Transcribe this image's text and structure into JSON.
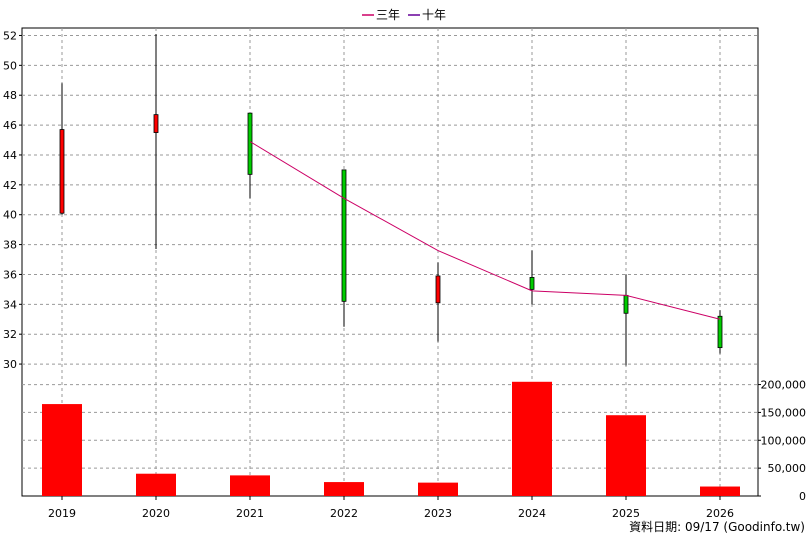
{
  "legend": {
    "three_year": "三年",
    "ten_year": "十年",
    "three_year_color": "#cc0066",
    "ten_year_color": "#660099"
  },
  "footer": "資料日期: 09/17  (Goodinfo.tw)",
  "chart_data": {
    "type": "candlestick",
    "categories": [
      "2019",
      "2020",
      "2021",
      "2022",
      "2023",
      "2024",
      "2025",
      "2026"
    ],
    "price_axis": {
      "ylim": [
        29,
        52.5
      ],
      "ticks": [
        "30",
        "32",
        "34",
        "36",
        "38",
        "40",
        "42",
        "44",
        "46",
        "48",
        "50",
        "52"
      ]
    },
    "volume_axis": {
      "ylim": [
        0,
        210000
      ],
      "ticks": [
        "0",
        "50,000",
        "100,000",
        "150,000",
        "200,000"
      ]
    },
    "candles": [
      {
        "year": "2019",
        "open": 40.1,
        "close": 45.7,
        "high": 48.8,
        "low": 40.0
      },
      {
        "year": "2020",
        "open": 45.5,
        "close": 46.7,
        "high": 52.1,
        "low": 37.7
      },
      {
        "year": "2021",
        "open": 46.8,
        "close": 42.7,
        "high": 46.8,
        "low": 41.1
      },
      {
        "year": "2022",
        "open": 43.0,
        "close": 34.2,
        "high": 43.0,
        "low": 32.5
      },
      {
        "year": "2023",
        "open": 34.1,
        "close": 35.9,
        "high": 36.8,
        "low": 31.5
      },
      {
        "year": "2024",
        "open": 35.8,
        "close": 35.0,
        "high": 37.6,
        "low": 34.0
      },
      {
        "year": "2025",
        "open": 34.6,
        "close": 33.4,
        "high": 36.0,
        "low": 29.9
      },
      {
        "year": "2026",
        "open": 33.2,
        "close": 31.1,
        "high": 33.6,
        "low": 30.7
      }
    ],
    "up_color": "#ff0000",
    "down_color": "#00cc00",
    "series": [
      {
        "name": "三年",
        "color": "#cc0066",
        "x": [
          "2021",
          "2022",
          "2023",
          "2024",
          "2025",
          "2026"
        ],
        "values": [
          44.9,
          41.1,
          37.6,
          34.9,
          34.6,
          33.0
        ]
      }
    ],
    "volume": {
      "color": "#ff0000",
      "values": [
        165000,
        40000,
        37000,
        25000,
        24000,
        205000,
        145000,
        17000
      ]
    },
    "grid": true
  }
}
